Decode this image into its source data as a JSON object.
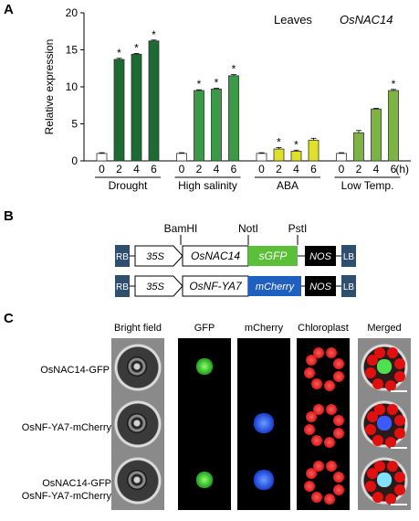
{
  "panel_a": {
    "letter": "A",
    "tissue": "Leaves",
    "gene": "OsNAC14",
    "unit": "(h)",
    "chart_data": {
      "type": "bar",
      "ylabel": "Relative expression",
      "ylim": [
        0,
        20
      ],
      "yticks": [
        0,
        5,
        10,
        15,
        20
      ],
      "time_points": [
        "0",
        "2",
        "4",
        "6"
      ],
      "groups": [
        {
          "name": "Drought",
          "values": [
            1.0,
            13.7,
            14.4,
            16.2
          ],
          "errors": [
            0.1,
            0.15,
            0.1,
            0.12
          ],
          "significant": [
            false,
            true,
            true,
            true
          ],
          "colors": [
            "#ffffff",
            "#1c6b32",
            "#1c6b32",
            "#1c6b32"
          ]
        },
        {
          "name": "High salinity",
          "values": [
            1.0,
            9.5,
            9.7,
            11.5
          ],
          "errors": [
            0.1,
            0.1,
            0.1,
            0.15
          ],
          "significant": [
            false,
            true,
            true,
            true
          ],
          "colors": [
            "#ffffff",
            "#3a9a45",
            "#3a9a45",
            "#3a9a45"
          ]
        },
        {
          "name": "ABA",
          "values": [
            1.0,
            1.6,
            1.3,
            2.8
          ],
          "errors": [
            0.1,
            0.2,
            0.15,
            0.25
          ],
          "significant": [
            false,
            true,
            true,
            false
          ],
          "colors": [
            "#ffffff",
            "#e0e02a",
            "#e0e02a",
            "#e0e02a"
          ]
        },
        {
          "name": "Low Temp.",
          "values": [
            1.0,
            3.8,
            7.0,
            9.5
          ],
          "errors": [
            0.1,
            0.3,
            0.1,
            0.15
          ],
          "significant": [
            false,
            false,
            false,
            true
          ],
          "colors": [
            "#ffffff",
            "#7cb342",
            "#7cb342",
            "#7cb342"
          ]
        }
      ]
    }
  },
  "panel_b": {
    "letter": "B",
    "sites": {
      "bamhi": "BamHI",
      "noti": "NotI",
      "psti": "PstI"
    },
    "construct1": {
      "rb": "RB",
      "promoter": "35S",
      "gene": "OsNAC14",
      "tag": "sGFP",
      "terminator": "NOS",
      "lb": "LB"
    },
    "construct2": {
      "rb": "RB",
      "promoter": "35S",
      "gene": "OsNF-YA7",
      "tag": "mCherry",
      "terminator": "NOS",
      "lb": "LB"
    },
    "colors": {
      "border_box": "#2f4f6f",
      "gfp": "#5cbf3a",
      "mcherry": "#1f5fbf",
      "nos": "#000000"
    }
  },
  "panel_c": {
    "letter": "C",
    "columns": [
      "Bright field",
      "GFP",
      "mCherry",
      "Chloroplast",
      "Merged"
    ],
    "rows": [
      {
        "label1": "OsNAC14-GFP",
        "label2": ""
      },
      {
        "label1": "OsNF-YA7-mCherry",
        "label2": ""
      },
      {
        "label1": "OsNAC14-GFP",
        "label2": "OsNF-YA7-mCherry"
      }
    ]
  }
}
